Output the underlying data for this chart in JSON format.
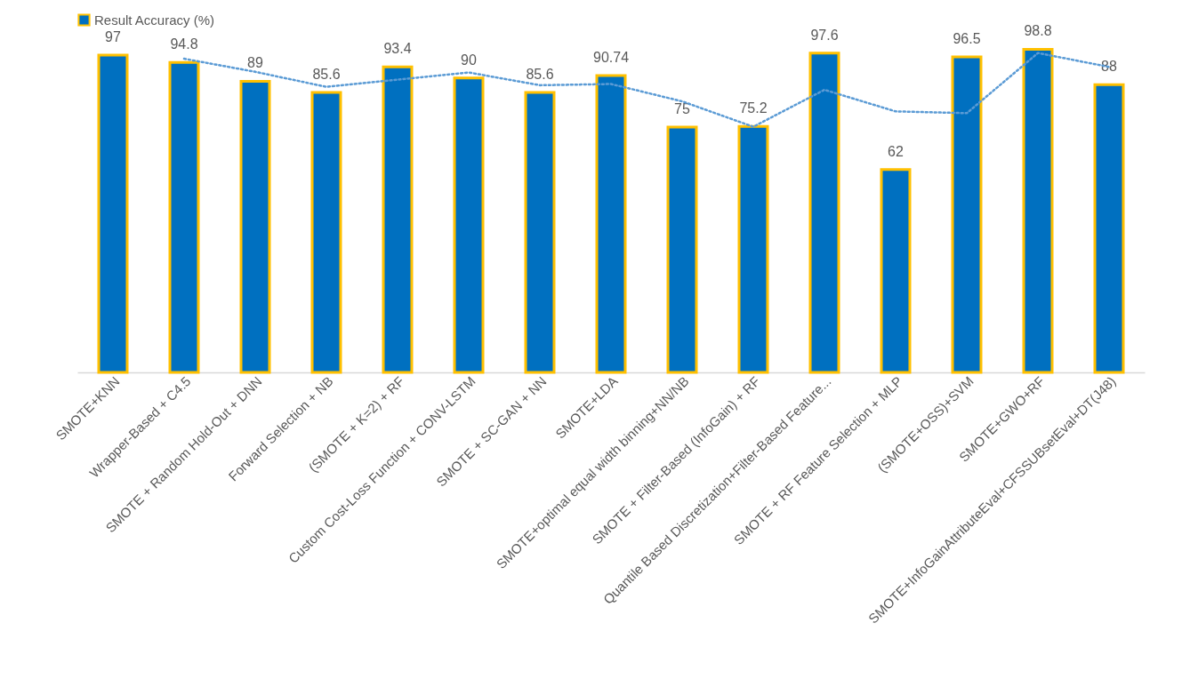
{
  "chart_data": {
    "type": "bar",
    "categories": [
      "SMOTE+KNN",
      "Wrapper-Based + C4.5",
      "SMOTE + Random Hold-Out + DNN",
      "Forward Selection + NB",
      "(SMOTE + K=2) + RF",
      "Custom Cost-Loss Function + CONV-LSTM",
      "SMOTE + SC-GAN + NN",
      "SMOTE+LDA",
      "SMOTE+optimal equal width binning+NN/NB",
      "SMOTE + Filter-Based (InfoGain) + RF",
      "Quantile Based Discretization+Filter-Based Feature...",
      "SMOTE + RF Feature Selection + MLP",
      "(SMOTE+OSS)+SVM",
      "SMOTE+GWO+RF",
      "SMOTE+InfoGainAttributeEval+CFSSUBsetEval+DT(J48)"
    ],
    "series": [
      {
        "name": "Result Accuracy (%)",
        "color": "#0070c0",
        "values": [
          97,
          94.8,
          89,
          85.6,
          93.4,
          90,
          85.6,
          90.74,
          75,
          75.2,
          97.6,
          62,
          96.5,
          98.8,
          88
        ],
        "value_labels": [
          "97",
          "94.8",
          "89",
          "85.6",
          "93.4",
          "90",
          "85.6",
          "90.74",
          "75",
          "75.2",
          "97.6",
          "62",
          "96.5",
          "98.8",
          "88"
        ]
      },
      {
        "type": "line",
        "color": "#5b9bd5",
        "line_style": "dotted",
        "values": [
          null,
          95.9,
          91.9,
          87.3,
          89.5,
          91.7,
          87.8,
          88.17,
          82.87,
          75.1,
          86.4,
          79.8,
          79.25,
          97.65,
          93.4
        ]
      }
    ],
    "legend": "top"
  }
}
